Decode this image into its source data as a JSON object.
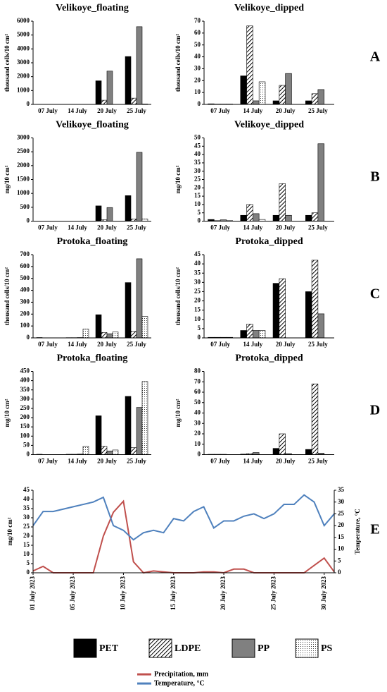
{
  "panel_labels": [
    "A",
    "B",
    "C",
    "D",
    "E"
  ],
  "chart_data": [
    {
      "type": "bar",
      "title": "Velikoye_floating",
      "ylabel": "thousand cells/10 cm²",
      "categories": [
        "07 July",
        "14 July",
        "20 July",
        "25 July"
      ],
      "series": [
        {
          "name": "PET",
          "color": "#000000",
          "pattern": "solid",
          "values": [
            5,
            10,
            1700,
            3450
          ]
        },
        {
          "name": "LDPE",
          "color": "#000000",
          "pattern": "hatch",
          "values": [
            2,
            5,
            300,
            450
          ]
        },
        {
          "name": "PP",
          "color": "#808080",
          "pattern": "solid",
          "values": [
            2,
            5,
            2400,
            5600
          ]
        },
        {
          "name": "PS",
          "color": "#000000",
          "pattern": "dots",
          "values": [
            2,
            5,
            0,
            30
          ]
        }
      ],
      "ylim": [
        0,
        6000
      ],
      "yticks": [
        0,
        1000,
        2000,
        3000,
        4000,
        5000,
        6000
      ]
    },
    {
      "type": "bar",
      "title": "Velikoye_dipped",
      "ylabel": "thousand cells/10 cm²",
      "categories": [
        "07 July",
        "14 July",
        "20 July",
        "25 July"
      ],
      "series": [
        {
          "name": "PET",
          "color": "#000000",
          "pattern": "solid",
          "values": [
            0.5,
            24,
            3,
            3
          ]
        },
        {
          "name": "LDPE",
          "color": "#000000",
          "pattern": "hatch",
          "values": [
            0.3,
            66,
            16,
            9
          ]
        },
        {
          "name": "PP",
          "color": "#808080",
          "pattern": "solid",
          "values": [
            0.3,
            3,
            26,
            12.5
          ]
        },
        {
          "name": "PS",
          "color": "#000000",
          "pattern": "dots",
          "values": [
            0.3,
            19,
            0,
            0
          ]
        }
      ],
      "ylim": [
        0,
        70
      ],
      "yticks": [
        0,
        10,
        20,
        30,
        40,
        50,
        60,
        70
      ]
    },
    {
      "type": "bar",
      "title": "Velikoye_floating",
      "ylabel": "mg/10 cm²",
      "categories": [
        "07 July",
        "14 July",
        "20 July",
        "25 July"
      ],
      "series": [
        {
          "name": "PET",
          "color": "#000000",
          "pattern": "solid",
          "values": [
            5,
            5,
            550,
            920
          ]
        },
        {
          "name": "LDPE",
          "color": "#000000",
          "pattern": "hatch",
          "values": [
            3,
            3,
            50,
            80
          ]
        },
        {
          "name": "PP",
          "color": "#808080",
          "pattern": "solid",
          "values": [
            3,
            3,
            490,
            2480
          ]
        },
        {
          "name": "PS",
          "color": "#000000",
          "pattern": "dots",
          "values": [
            3,
            3,
            0,
            80
          ]
        }
      ],
      "ylim": [
        0,
        3000
      ],
      "yticks": [
        0,
        500,
        1000,
        1500,
        2000,
        2500,
        3000
      ]
    },
    {
      "type": "bar",
      "title": "Velikoye_dipped",
      "ylabel": "mg/10 cm²",
      "categories": [
        "07 July",
        "14 July",
        "20 July",
        "25 July"
      ],
      "series": [
        {
          "name": "PET",
          "color": "#000000",
          "pattern": "solid",
          "values": [
            1,
            3.5,
            3.5,
            3.5
          ]
        },
        {
          "name": "LDPE",
          "color": "#000000",
          "pattern": "hatch",
          "values": [
            0.3,
            10,
            22.5,
            5
          ]
        },
        {
          "name": "PP",
          "color": "#808080",
          "pattern": "solid",
          "values": [
            0.8,
            4.5,
            3.5,
            46.5
          ]
        },
        {
          "name": "PS",
          "color": "#000000",
          "pattern": "dots",
          "values": [
            0.3,
            1,
            0,
            0
          ]
        }
      ],
      "ylim": [
        0,
        50
      ],
      "yticks": [
        0,
        5,
        10,
        15,
        20,
        25,
        30,
        35,
        40,
        45,
        50
      ]
    },
    {
      "type": "bar",
      "title": "Protoka_floating",
      "ylabel": "thousand cells/10 cm²",
      "categories": [
        "07 July",
        "14 July",
        "20 July",
        "25 July"
      ],
      "series": [
        {
          "name": "PET",
          "color": "#000000",
          "pattern": "solid",
          "values": [
            3,
            2,
            195,
            465
          ]
        },
        {
          "name": "LDPE",
          "color": "#000000",
          "pattern": "hatch",
          "values": [
            0,
            2,
            45,
            55
          ]
        },
        {
          "name": "PP",
          "color": "#808080",
          "pattern": "solid",
          "values": [
            0,
            3,
            35,
            665
          ]
        },
        {
          "name": "PS",
          "color": "#000000",
          "pattern": "dots",
          "values": [
            0,
            75,
            50,
            180
          ]
        }
      ],
      "ylim": [
        0,
        700
      ],
      "yticks": [
        0,
        100,
        200,
        300,
        400,
        500,
        600,
        700
      ]
    },
    {
      "type": "bar",
      "title": "Protoka_dipped",
      "ylabel": "thousand cells/10 cm²",
      "categories": [
        "07 July",
        "14 July",
        "20 July",
        "25 July"
      ],
      "series": [
        {
          "name": "PET",
          "color": "#000000",
          "pattern": "solid",
          "values": [
            0.3,
            4,
            29.5,
            25
          ]
        },
        {
          "name": "LDPE",
          "color": "#000000",
          "pattern": "hatch",
          "values": [
            0.3,
            7.5,
            32,
            42
          ]
        },
        {
          "name": "PP",
          "color": "#808080",
          "pattern": "solid",
          "values": [
            0.3,
            4,
            0,
            13
          ]
        },
        {
          "name": "PS",
          "color": "#000000",
          "pattern": "dots",
          "values": [
            0.3,
            4,
            0,
            0
          ]
        }
      ],
      "ylim": [
        0,
        45
      ],
      "yticks": [
        0,
        5,
        10,
        15,
        20,
        25,
        30,
        35,
        40,
        45
      ]
    },
    {
      "type": "bar",
      "title": "Protoka_floating",
      "ylabel": "mg/10 cm²",
      "categories": [
        "07 July",
        "14 July",
        "20 July",
        "25 July"
      ],
      "series": [
        {
          "name": "PET",
          "color": "#000000",
          "pattern": "solid",
          "values": [
            2,
            2,
            210,
            315
          ]
        },
        {
          "name": "LDPE",
          "color": "#000000",
          "pattern": "hatch",
          "values": [
            0,
            2,
            45,
            38
          ]
        },
        {
          "name": "PP",
          "color": "#808080",
          "pattern": "solid",
          "values": [
            0,
            3,
            20,
            255
          ]
        },
        {
          "name": "PS",
          "color": "#000000",
          "pattern": "dots",
          "values": [
            0,
            45,
            25,
            395
          ]
        }
      ],
      "ylim": [
        0,
        450
      ],
      "yticks": [
        0,
        50,
        100,
        150,
        200,
        250,
        300,
        350,
        400,
        450
      ]
    },
    {
      "type": "bar",
      "title": "Protoka_dipped",
      "ylabel": "mg/10 cm²",
      "categories": [
        "07 July",
        "14 July",
        "20 July",
        "25 July"
      ],
      "series": [
        {
          "name": "PET",
          "color": "#000000",
          "pattern": "solid",
          "values": [
            0.3,
            0.5,
            6,
            5
          ]
        },
        {
          "name": "LDPE",
          "color": "#000000",
          "pattern": "hatch",
          "values": [
            0.3,
            1,
            20,
            68
          ]
        },
        {
          "name": "PP",
          "color": "#808080",
          "pattern": "solid",
          "values": [
            0.3,
            2,
            1,
            1.5
          ]
        },
        {
          "name": "PS",
          "color": "#000000",
          "pattern": "dots",
          "values": [
            0,
            0,
            0,
            0
          ]
        }
      ],
      "ylim": [
        0,
        80
      ],
      "yticks": [
        0,
        10,
        20,
        30,
        40,
        50,
        60,
        70,
        80
      ]
    },
    {
      "type": "line",
      "ylabel": "mg/10 cm²",
      "y2label": "Temperature, °C",
      "x": [
        1,
        2,
        3,
        4,
        5,
        6,
        7,
        8,
        9,
        10,
        11,
        12,
        13,
        14,
        15,
        16,
        17,
        18,
        19,
        20,
        21,
        22,
        23,
        24,
        25,
        26,
        27,
        28,
        29,
        30,
        31
      ],
      "xlim": [
        1,
        31
      ],
      "xticks": [
        {
          "value": 1,
          "label": "01 July 2023"
        },
        {
          "value": 5,
          "label": "05 July 2023"
        },
        {
          "value": 10,
          "label": "10 July 2023"
        },
        {
          "value": 15,
          "label": "15 July 2023"
        },
        {
          "value": 20,
          "label": "20 July 2023"
        },
        {
          "value": 25,
          "label": "25 July 2023"
        },
        {
          "value": 30,
          "label": "30 July 2023"
        }
      ],
      "ylim": [
        0,
        45
      ],
      "yticks": [
        0,
        5,
        10,
        15,
        20,
        25,
        30,
        35,
        40,
        45
      ],
      "y2lim": [
        0,
        35
      ],
      "y2ticks": [
        0,
        5,
        10,
        15,
        20,
        25,
        30,
        35
      ],
      "series": [
        {
          "name": "Precipitation, mm",
          "color": "#c0504d",
          "values": [
            1,
            3.5,
            0,
            0,
            0,
            0,
            0,
            20,
            33,
            39,
            6,
            0,
            1,
            0.5,
            0,
            0,
            0,
            0.5,
            0.5,
            0,
            2,
            2,
            0,
            0,
            0,
            0,
            0,
            0,
            4,
            8,
            0.5
          ]
        },
        {
          "name": "Temperature, °C",
          "color": "#4f81bd",
          "axis": "y2",
          "values": [
            20,
            26,
            26,
            27,
            28,
            29,
            30,
            32,
            20,
            18,
            14,
            17,
            18,
            17,
            23,
            22,
            26,
            28,
            19,
            22,
            22,
            24,
            25,
            23,
            25,
            29,
            29,
            33,
            30,
            20,
            25
          ]
        }
      ]
    }
  ]
}
